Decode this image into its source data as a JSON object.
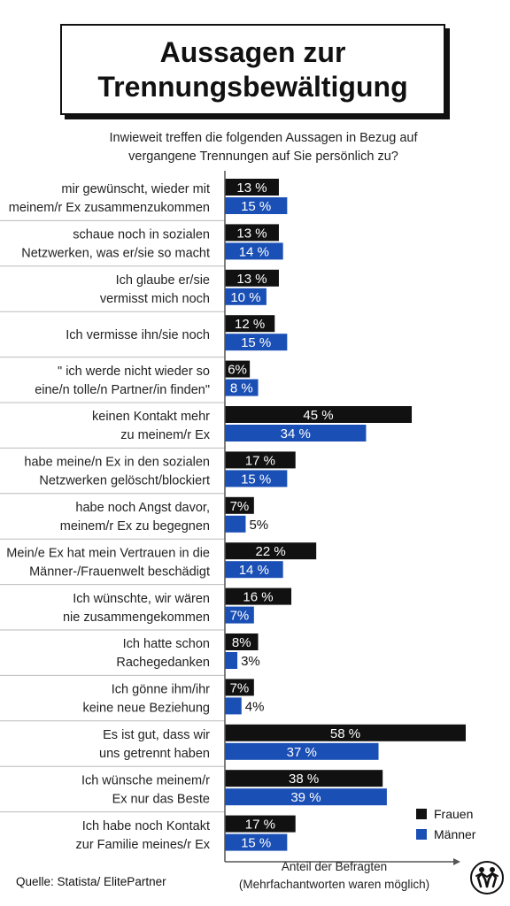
{
  "page": {
    "title": "Aussagen zur Trennungsbewältigung",
    "subtitle": "Inwieweit treffen die folgenden Aussagen in Bezug auf vergangene Trennungen auf Sie persönlich zu?",
    "source": "Quelle: Statista/ ElitePartner",
    "axis_caption_line1": "Anteil der Befragten",
    "axis_caption_line2": "(Mehrfachantworten waren möglich)"
  },
  "colors": {
    "frauen": "#111111",
    "maenner": "#1a4fb5",
    "separator": "#bbbbbb"
  },
  "logo": {
    "icon": "elitepartner-logo-icon"
  },
  "chart_data": {
    "type": "bar",
    "orientation": "horizontal",
    "categories": [
      [
        "mir gewünscht, wieder mit",
        "meinem/r Ex zusammenzukommen"
      ],
      [
        "schaue noch in sozialen",
        "Netzwerken, was er/sie so macht"
      ],
      [
        "Ich glaube er/sie",
        "vermisst mich noch"
      ],
      [
        "Ich vermisse ihn/sie noch"
      ],
      [
        "\" ich werde nicht wieder so",
        "eine/n tolle/n Partner/in finden\""
      ],
      [
        "keinen Kontakt mehr",
        "zu meinem/r Ex"
      ],
      [
        "habe meine/n Ex in den sozialen",
        "Netzwerken gelöscht/blockiert"
      ],
      [
        "habe noch Angst davor,",
        "meinem/r Ex zu begegnen"
      ],
      [
        "Mein/e Ex hat mein Vertrauen in die",
        "Männer-/Frauenwelt beschädigt"
      ],
      [
        "Ich wünschte, wir wären",
        "nie zusammengekommen"
      ],
      [
        "Ich hatte schon",
        "Rachegedanken"
      ],
      [
        "Ich gönne ihm/ihr",
        "keine neue Beziehung"
      ],
      [
        "Es ist gut, dass wir",
        "uns getrennt haben"
      ],
      [
        "Ich wünsche meinem/r",
        "Ex nur das Beste"
      ],
      [
        "Ich habe noch Kontakt",
        "zur Familie meines/r Ex"
      ]
    ],
    "series": [
      {
        "name": "Frauen",
        "values": [
          13,
          13,
          13,
          12,
          6,
          45,
          17,
          7,
          22,
          16,
          8,
          7,
          58,
          38,
          17
        ],
        "labels": [
          "13 %",
          "13 %",
          "13 %",
          "12 %",
          "6%",
          "45 %",
          "17 %",
          "7%",
          "22 %",
          "16 %",
          "8%",
          "7%",
          "58 %",
          "38 %",
          "17 %"
        ]
      },
      {
        "name": "Männer",
        "values": [
          15,
          14,
          10,
          15,
          8,
          34,
          15,
          5,
          14,
          7,
          3,
          4,
          37,
          39,
          15
        ],
        "labels": [
          "15 %",
          "14 %",
          "10 %",
          "15 %",
          "8 %",
          "34 %",
          "15 %",
          "5%",
          "14 %",
          "7%",
          "3%",
          "4%",
          "37 %",
          "39 %",
          "15 %"
        ]
      }
    ],
    "xlim": [
      0,
      58
    ],
    "legend": "bottom-right",
    "grid": false
  }
}
